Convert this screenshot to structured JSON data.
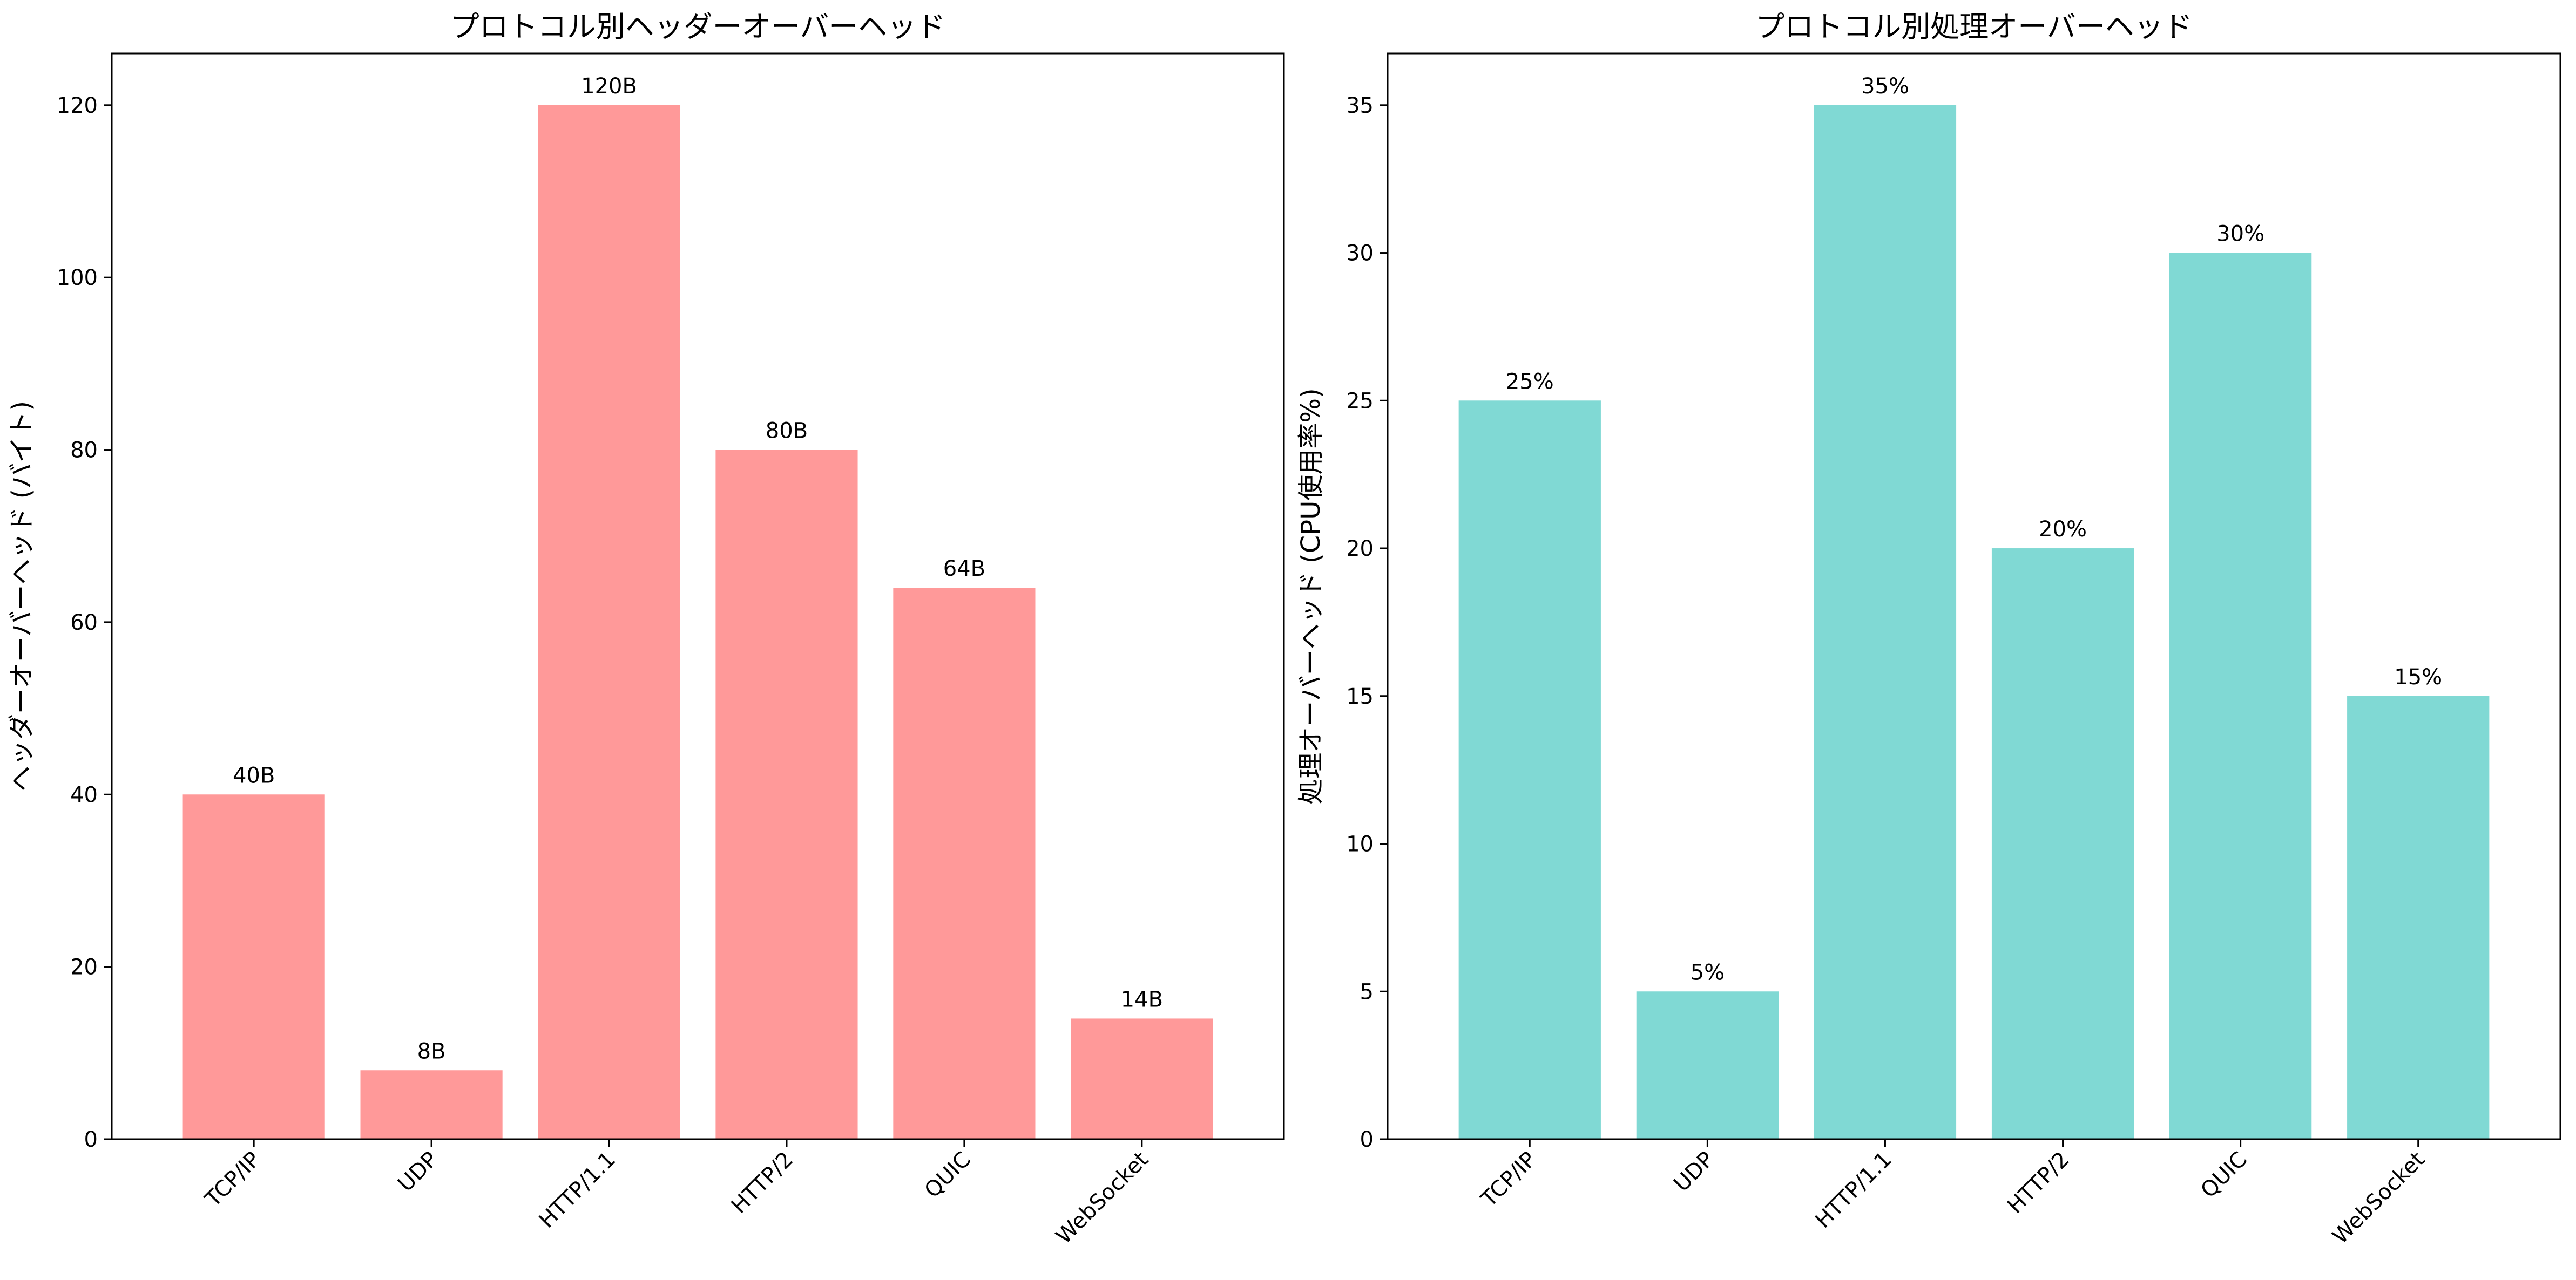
{
  "colors": {
    "header_bar": "#FF9999",
    "processing_bar": "#80D9D4",
    "axis": "#000000",
    "background": "#FFFFFF"
  },
  "chart_data": [
    {
      "type": "bar",
      "title": "プロトコル別ヘッダーオーバーヘッド",
      "xlabel": "",
      "ylabel": "ヘッダーオーバーヘッド (バイト)",
      "categories": [
        "TCP/IP",
        "UDP",
        "HTTP/1.1",
        "HTTP/2",
        "QUIC",
        "WebSocket"
      ],
      "values": [
        40,
        8,
        120,
        80,
        64,
        14
      ],
      "value_labels": [
        "40B",
        "8B",
        "120B",
        "80B",
        "64B",
        "14B"
      ],
      "ylim": [
        0,
        126
      ],
      "yticks": [
        0,
        20,
        40,
        60,
        80,
        100,
        120
      ],
      "grid": false,
      "legend": "none",
      "color": "#FF9999"
    },
    {
      "type": "bar",
      "title": "プロトコル別処理オーバーヘッド",
      "xlabel": "",
      "ylabel": "処理オーバーヘッド (CPU使用率%)",
      "categories": [
        "TCP/IP",
        "UDP",
        "HTTP/1.1",
        "HTTP/2",
        "QUIC",
        "WebSocket"
      ],
      "values": [
        25,
        5,
        35,
        20,
        30,
        15
      ],
      "value_labels": [
        "25%",
        "5%",
        "35%",
        "20%",
        "30%",
        "15%"
      ],
      "ylim": [
        0,
        36.75
      ],
      "yticks": [
        0,
        5,
        10,
        15,
        20,
        25,
        30,
        35
      ],
      "grid": false,
      "legend": "none",
      "color": "#80D9D4"
    }
  ]
}
